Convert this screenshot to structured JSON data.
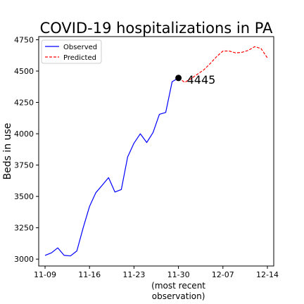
{
  "chart_data": {
    "type": "line",
    "title": "COVID-19 hospitalizations in PA",
    "xlabel": "",
    "ylabel": "Beds in use",
    "x_ticks": [
      "11-09",
      "11-16",
      "11-23",
      "11-30",
      "12-07",
      "12-14"
    ],
    "x_tick_sublabel": "(most recent\nobservation)",
    "y_ticks": [
      3000,
      3250,
      3500,
      3750,
      4000,
      4250,
      4500,
      4750
    ],
    "ylim": [
      2945,
      4775
    ],
    "xlim": [
      "11-08",
      "12-15"
    ],
    "grid": false,
    "legend_position": "top-left",
    "series": [
      {
        "name": "Observed",
        "color": "#0000ff",
        "style": "solid",
        "points": [
          [
            "11-09",
            3030
          ],
          [
            "11-10",
            3050
          ],
          [
            "11-11",
            3090
          ],
          [
            "11-12",
            3030
          ],
          [
            "11-13",
            3025
          ],
          [
            "11-14",
            3065
          ],
          [
            "11-15",
            3250
          ],
          [
            "11-16",
            3420
          ],
          [
            "11-17",
            3530
          ],
          [
            "11-18",
            3590
          ],
          [
            "11-19",
            3650
          ],
          [
            "11-20",
            3535
          ],
          [
            "11-21",
            3555
          ],
          [
            "11-22",
            3815
          ],
          [
            "11-23",
            3925
          ],
          [
            "11-24",
            4000
          ],
          [
            "11-25",
            3930
          ],
          [
            "11-26",
            4010
          ],
          [
            "11-27",
            4155
          ],
          [
            "11-28",
            4170
          ],
          [
            "11-29",
            4415
          ],
          [
            "11-30",
            4445
          ]
        ]
      },
      {
        "name": "Predicted",
        "color": "#ff0000",
        "style": "dashed",
        "points": [
          [
            "11-30",
            4445
          ],
          [
            "12-01",
            4410
          ],
          [
            "12-02",
            4440
          ],
          [
            "12-03",
            4475
          ],
          [
            "12-04",
            4510
          ],
          [
            "12-05",
            4560
          ],
          [
            "12-06",
            4615
          ],
          [
            "12-07",
            4660
          ],
          [
            "12-08",
            4660
          ],
          [
            "12-09",
            4645
          ],
          [
            "12-10",
            4650
          ],
          [
            "12-11",
            4665
          ],
          [
            "12-12",
            4695
          ],
          [
            "12-13",
            4680
          ],
          [
            "12-14",
            4605
          ]
        ]
      }
    ],
    "annotation": {
      "x": "11-30",
      "y": 4445,
      "text": "4445"
    }
  }
}
